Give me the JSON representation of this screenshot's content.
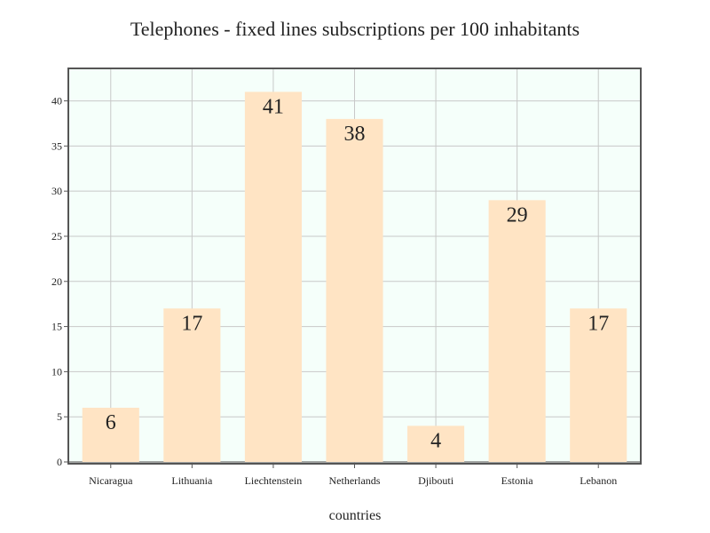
{
  "chart_data": {
    "type": "bar",
    "title": "Telephones - fixed lines subscriptions per 100 inhabitants",
    "xlabel": "countries",
    "ylabel": "",
    "categories": [
      "Nicaragua",
      "Lithuania",
      "Liechtenstein",
      "Netherlands",
      "Djibouti",
      "Estonia",
      "Lebanon"
    ],
    "values": [
      6,
      17,
      41,
      38,
      4,
      29,
      17
    ],
    "ylim": [
      0,
      43.5
    ],
    "yticks": [
      0,
      5,
      10,
      15,
      20,
      25,
      30,
      35,
      40
    ],
    "grid": true,
    "legend": "none",
    "colors": {
      "bar": "#ffe4c4",
      "plot_background": "#f5fffa",
      "grid": "#c8c8c8",
      "frame": "#555555"
    }
  }
}
